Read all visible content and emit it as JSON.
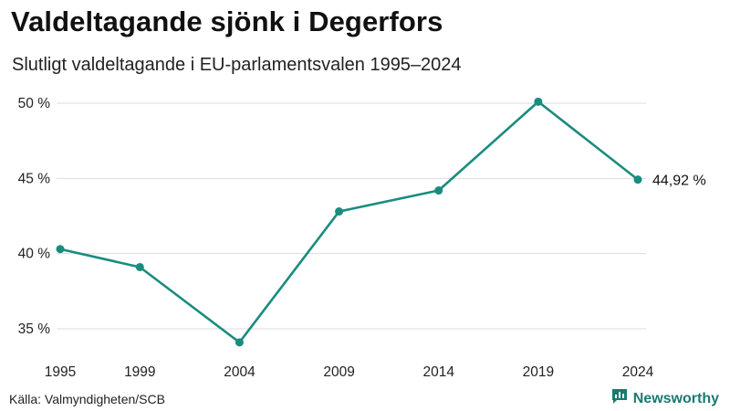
{
  "title": "Valdeltagande sjönk i Degerfors",
  "subtitle": "Slutligt valdeltagande i EU-parlamentsvalen 1995–2024",
  "source": "Källa: Valmyndigheten/SCB",
  "brand": {
    "name": "Newsworthy",
    "icon": "newsworthy-logo-icon",
    "color": "#1a7a6e"
  },
  "colors": {
    "line": "#1a8c7e",
    "grid": "#dddddd"
  },
  "chart_data": {
    "type": "line",
    "categories": [
      "1995",
      "1999",
      "2004",
      "2009",
      "2014",
      "2019",
      "2024"
    ],
    "series": [
      {
        "name": "Valdeltagande",
        "values": [
          40.3,
          39.1,
          34.1,
          42.8,
          44.2,
          50.1,
          44.92
        ]
      }
    ],
    "y_ticks": [
      35,
      40,
      45,
      50
    ],
    "y_tick_labels": [
      "35 %",
      "40 %",
      "45 %",
      "50 %"
    ],
    "ylim": [
      33.2,
      50.2
    ],
    "end_label": "44,92 %",
    "xlabel": "",
    "ylabel": "",
    "grid": true
  }
}
